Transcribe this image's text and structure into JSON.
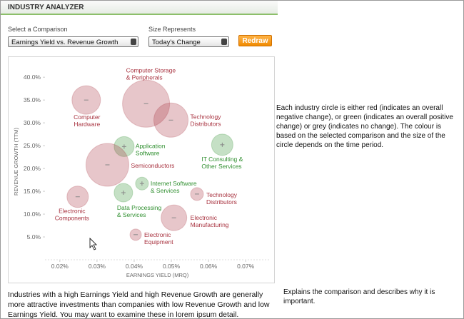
{
  "header": {
    "title": "INDUSTRY ANALYZER"
  },
  "controls": {
    "comparison_label": "Select a Comparison",
    "comparison_value": "Earnings Yield vs. Revenue Growth",
    "size_label": "Size Represents",
    "size_value": "Today's Change",
    "button": "Redraw"
  },
  "chart_data": {
    "type": "bubble",
    "xlabel": "EARNINGS YIELD (MRQ)",
    "ylabel": "REVENUE GROWTH (TTM)",
    "xlim": [
      0.016,
      0.0765
    ],
    "ylim": [
      0,
      43
    ],
    "xticks": [
      {
        "value": 0.02,
        "label": "0.02%"
      },
      {
        "value": 0.03,
        "label": "0.03%"
      },
      {
        "value": 0.04,
        "label": "0.04%"
      },
      {
        "value": 0.05,
        "label": "0.05%"
      },
      {
        "value": 0.06,
        "label": "0.06%"
      },
      {
        "value": 0.07,
        "label": "0.07%"
      }
    ],
    "yticks": [
      {
        "value": 5,
        "label": "5.0%"
      },
      {
        "value": 10,
        "label": "10.0%"
      },
      {
        "value": 15,
        "label": "15.0%"
      },
      {
        "value": 20,
        "label": "20.0%"
      },
      {
        "value": 25,
        "label": "25.0%"
      },
      {
        "value": 30,
        "label": "30.0%"
      },
      {
        "value": 35,
        "label": "35.0%"
      },
      {
        "value": 40,
        "label": "40.0%"
      }
    ],
    "points": [
      {
        "label": [
          "Computer",
          "Hardware"
        ],
        "x": 0.0271,
        "y": 35,
        "size": 20,
        "color": "#a8323f",
        "marker": "minus"
      },
      {
        "label": [
          "Computer Storage",
          "& Peripherals"
        ],
        "x": 0.0432,
        "y": 34.2,
        "size": 33,
        "color": "#a8323f",
        "marker": "minus"
      },
      {
        "label": [
          "Technology",
          "Distributors"
        ],
        "x": 0.0499,
        "y": 30.6,
        "size": 24,
        "color": "#a8323f",
        "marker": "minus"
      },
      {
        "label": [
          "Application",
          "Software"
        ],
        "x": 0.0373,
        "y": 24.8,
        "size": 14,
        "color": "#2f8f2f",
        "marker": "plus"
      },
      {
        "label": [
          "Semiconductors"
        ],
        "x": 0.0328,
        "y": 20.8,
        "size": 30,
        "color": "#a8323f",
        "marker": "minus"
      },
      {
        "label": [
          "IT Consulting &",
          "Other Services"
        ],
        "x": 0.0637,
        "y": 25.2,
        "size": 15,
        "color": "#2f8f2f",
        "marker": "plus"
      },
      {
        "label": [
          "Internet Software",
          "& Services"
        ],
        "x": 0.0421,
        "y": 16.7,
        "size": 9,
        "color": "#2f8f2f",
        "marker": "plus"
      },
      {
        "label": [
          "Data Processing",
          "& Services"
        ],
        "x": 0.0371,
        "y": 14.7,
        "size": 13,
        "color": "#2f8f2f",
        "marker": "plus"
      },
      {
        "label": [
          "Electronic",
          "Components"
        ],
        "x": 0.0248,
        "y": 13.8,
        "size": 15,
        "color": "#a8323f",
        "marker": "minus"
      },
      {
        "label": [
          "Technology",
          "Distributors"
        ],
        "x": 0.0569,
        "y": 14.4,
        "size": 9,
        "color": "#a8323f",
        "marker": "minus"
      },
      {
        "label": [
          "Electronic",
          "Manufacturing"
        ],
        "x": 0.0507,
        "y": 9.2,
        "size": 18,
        "color": "#a8323f",
        "marker": "minus"
      },
      {
        "label": [
          "Electronic",
          "Equipment"
        ],
        "x": 0.0404,
        "y": 5.5,
        "size": 8,
        "color": "#a8323f",
        "marker": "minus"
      }
    ]
  },
  "description": "Industries with a high Earnings Yield and high Revenue Growth are generally more attractive investments than companies with low Revenue Growth and low Earnings Yield. You may want to examine these in lorem ipsum detail.",
  "notes": {
    "circles": "Each industry circle is either red (indicates an overall negative change), or green (indicates an overall positive change) or grey (indicates no change). The colour is based on the selected comparison and the size of the circle depends on the time period.",
    "comparison": "Explains the comparison and describes why it is important."
  }
}
